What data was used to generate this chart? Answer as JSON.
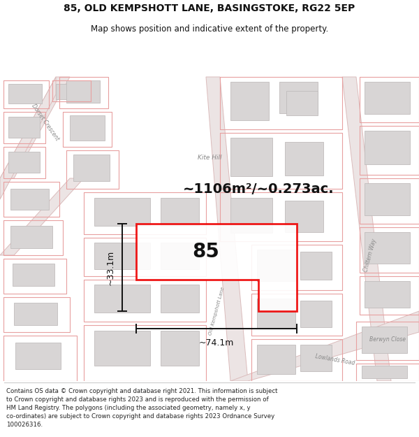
{
  "title_line1": "85, OLD KEMPSHOTT LANE, BASINGSTOKE, RG22 5EP",
  "title_line2": "Map shows position and indicative extent of the property.",
  "footer_text": "Contains OS data © Crown copyright and database right 2021. This information is subject to Crown copyright and database rights 2023 and is reproduced with the permission of HM Land Registry. The polygons (including the associated geometry, namely x, y co-ordinates) are subject to Crown copyright and database rights 2023 Ordnance Survey 100026316.",
  "area_text": "~1106m²/~0.273ac.",
  "label_85": "85",
  "dim_width": "~74.1m",
  "dim_height": "~33.1m",
  "map_bg": "#f7f3f3",
  "building_fill": "#d8d5d5",
  "building_edge": "#c0bcbc",
  "highlight_fill": "#ffffff",
  "highlight_edge": "#ee0000",
  "plot_line_color": "#e8a0a0",
  "road_fill": "#ece4e4",
  "street_label_color": "#888888",
  "dim_color": "#111111",
  "title_color": "#111111",
  "footer_color": "#222222"
}
